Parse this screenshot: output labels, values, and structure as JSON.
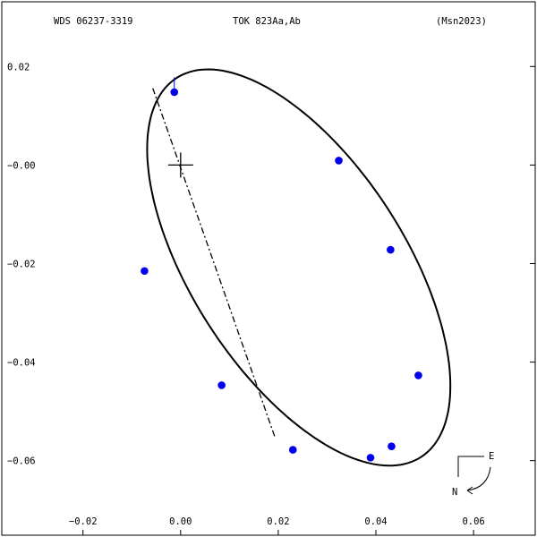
{
  "header": {
    "left": "WDS 06237-3319",
    "center": "TOK 823Aa,Ab",
    "right": "(Msn2023)"
  },
  "compass": {
    "east": "E",
    "north": "N"
  },
  "colors": {
    "points": "#0000ee",
    "ink": "#000000"
  },
  "chart_data": {
    "type": "scatter",
    "x_ticks": [
      -0.02,
      0.0,
      0.02,
      0.04,
      0.06
    ],
    "x_tick_labels": [
      "−0.02",
      "0.00",
      "0.02",
      "0.04",
      "0.06"
    ],
    "y_ticks": [
      0.02,
      0.0,
      -0.02,
      -0.04,
      -0.06
    ],
    "y_tick_labels": [
      "0.02",
      "−0.00",
      "−0.02",
      "−0.04",
      "−0.06"
    ],
    "xlim": [
      -0.037,
      0.073
    ],
    "ylim": [
      -0.0755,
      0.0335
    ],
    "primary": [
      0,
      0
    ],
    "orbit": {
      "center": [
        0.0242,
        -0.0208
      ],
      "semi_major": 0.0459,
      "semi_minor": 0.0218,
      "major_axis_direction_deg": -56.8
    },
    "line_of_nodes": [
      [
        -0.0057,
        0.0156
      ],
      [
        0.0193,
        -0.0552
      ]
    ],
    "observations": [
      {
        "x": -0.0013,
        "y": 0.0148,
        "fit": [
          -0.0013,
          0.0178
        ]
      },
      {
        "x": 0.0324,
        "y": 0.0009,
        "fit": [
          0.0324,
          0.0009
        ]
      },
      {
        "x": 0.043,
        "y": -0.0172,
        "fit": [
          0.043,
          -0.0172
        ]
      },
      {
        "x": 0.0487,
        "y": -0.0427,
        "fit": [
          0.0487,
          -0.0427
        ]
      },
      {
        "x": 0.0432,
        "y": -0.0571,
        "fit": [
          0.0432,
          -0.0571
        ]
      },
      {
        "x": 0.0389,
        "y": -0.0594,
        "fit": [
          0.0389,
          -0.0594
        ]
      },
      {
        "x": 0.023,
        "y": -0.0578,
        "fit": [
          0.023,
          -0.0578
        ]
      },
      {
        "x": 0.0084,
        "y": -0.0447,
        "fit": [
          0.0084,
          -0.0447
        ]
      },
      {
        "x": -0.0074,
        "y": -0.0215,
        "fit": [
          -0.0074,
          -0.0215
        ]
      }
    ]
  }
}
